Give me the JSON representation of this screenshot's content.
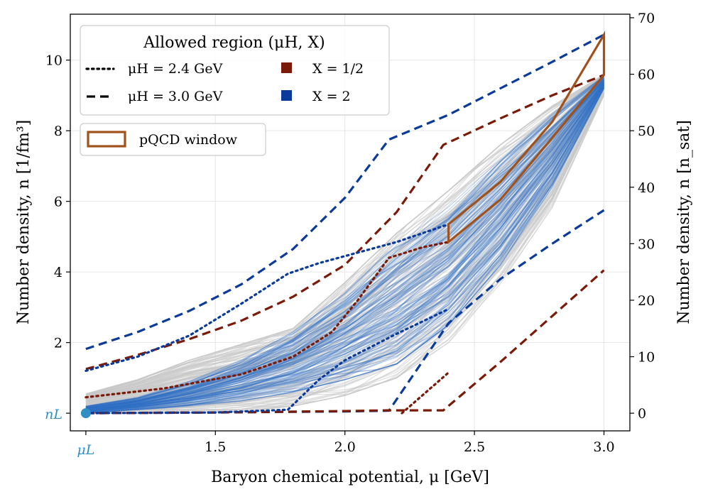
{
  "chart_data": {
    "type": "line",
    "xlabel": "Baryon chemical potential, μ [GeV]",
    "ylabel": "Number density, n [1/fm³]",
    "ylabel_right": "Number density, n [n_sat]",
    "xlim": [
      0.94,
      3.1
    ],
    "ylim": [
      -0.5,
      11.3
    ],
    "ylim_right": [
      -3.125,
      70.625
    ],
    "x_ticks": [
      {
        "value": 1.5,
        "label": "1.5"
      },
      {
        "value": 2.0,
        "label": "2.0"
      },
      {
        "value": 2.5,
        "label": "2.5"
      },
      {
        "value": 3.0,
        "label": "3.0"
      }
    ],
    "x_special_tick": {
      "value": 1.0,
      "label": "μL"
    },
    "y_ticks": [
      {
        "value": 2,
        "label": "2"
      },
      {
        "value": 4,
        "label": "4"
      },
      {
        "value": 6,
        "label": "6"
      },
      {
        "value": 8,
        "label": "8"
      },
      {
        "value": 10,
        "label": "10"
      }
    ],
    "y_special_tick": {
      "value": 0,
      "label": "nL"
    },
    "y_right_ticks": [
      {
        "value": 0,
        "label": "0"
      },
      {
        "value": 10,
        "label": "10"
      },
      {
        "value": 20,
        "label": "20"
      },
      {
        "value": 30,
        "label": "30"
      },
      {
        "value": 40,
        "label": "40"
      },
      {
        "value": 50,
        "label": "50"
      },
      {
        "value": 60,
        "label": "60"
      },
      {
        "value": 70,
        "label": "70"
      }
    ],
    "grid": true,
    "legend": {
      "placement": "top-left",
      "title": "Allowed region (μH, X)",
      "entries": [
        {
          "label": "μH = 2.4 GeV",
          "style": "dotted",
          "color": "#000000"
        },
        {
          "label": "μH = 3.0 GeV",
          "style": "dashed",
          "color": "#000000"
        },
        {
          "label": "X = 1/2",
          "style": "square",
          "color": "#7a1a08"
        },
        {
          "label": "X = 2",
          "style": "square",
          "color": "#0b3b9a"
        }
      ],
      "window_entry": {
        "label": "pQCD window",
        "color": "#a0521d"
      }
    },
    "colors": {
      "x_half": "#7a1a08",
      "x_two": "#0b3b9a",
      "window": "#a0521d",
      "ensemble_blue": "#2d6ec6",
      "ensemble_gray": "#c8c8c8",
      "low_point": "#2f8fc4"
    },
    "low_density_point": {
      "x": 1.0,
      "y": 0.0
    },
    "series": [
      {
        "name": "X = 2, μH = 3.0 GeV upper",
        "style": "dashed",
        "color_key": "x_two",
        "x": [
          1.0,
          1.2,
          1.4,
          1.6,
          1.8,
          2.0,
          2.17,
          2.4,
          2.6,
          2.8,
          3.0
        ],
        "y": [
          1.82,
          2.3,
          2.9,
          3.65,
          4.65,
          6.1,
          7.75,
          8.45,
          9.2,
          9.95,
          10.72
        ]
      },
      {
        "name": "X = 2, μH = 3.0 GeV lower",
        "style": "dashed",
        "color_key": "x_two",
        "x": [
          1.0,
          1.5,
          2.0,
          2.17,
          2.4,
          2.6,
          2.8,
          3.0
        ],
        "y": [
          0.0,
          0.02,
          0.05,
          0.07,
          2.55,
          3.8,
          4.8,
          5.75
        ]
      },
      {
        "name": "X = 1/2, μH = 3.0 GeV upper",
        "style": "dashed",
        "color_key": "x_half",
        "x": [
          1.0,
          1.2,
          1.4,
          1.6,
          1.8,
          2.0,
          2.2,
          2.38,
          2.6,
          2.8,
          3.0
        ],
        "y": [
          1.25,
          1.65,
          2.1,
          2.62,
          3.3,
          4.2,
          5.7,
          7.6,
          8.35,
          9.0,
          9.58
        ]
      },
      {
        "name": "X = 1/2, μH = 3.0 GeV lower",
        "style": "dashed",
        "color_key": "x_half",
        "x": [
          1.0,
          1.5,
          2.0,
          2.16,
          2.38,
          2.6,
          2.8,
          3.0
        ],
        "y": [
          0.0,
          0.02,
          0.06,
          0.08,
          0.08,
          1.45,
          2.75,
          4.05
        ]
      },
      {
        "name": "X = 2, μH = 2.4 GeV upper",
        "style": "dotted",
        "color_key": "x_two",
        "x": [
          1.0,
          1.2,
          1.4,
          1.6,
          1.78,
          1.9,
          2.0,
          2.2,
          2.4
        ],
        "y": [
          1.2,
          1.6,
          2.2,
          3.1,
          3.95,
          4.25,
          4.45,
          4.85,
          5.35
        ]
      },
      {
        "name": "X = 2, μH = 2.4 GeV lower",
        "style": "dotted",
        "color_key": "x_two",
        "x": [
          1.0,
          1.5,
          1.78,
          1.9,
          2.0,
          2.2,
          2.4
        ],
        "y": [
          0.0,
          0.02,
          0.1,
          0.95,
          1.5,
          2.25,
          2.95
        ]
      },
      {
        "name": "X = 1/2, μH = 2.4 GeV upper",
        "style": "dotted",
        "color_key": "x_half",
        "x": [
          1.0,
          1.3,
          1.6,
          1.8,
          1.95,
          2.05,
          2.17,
          2.3,
          2.4
        ],
        "y": [
          0.45,
          0.7,
          1.1,
          1.6,
          2.3,
          3.2,
          4.4,
          4.7,
          4.85
        ]
      },
      {
        "name": "X = 1/2, μH = 2.4 GeV lower",
        "style": "dotted",
        "color_key": "x_half",
        "x": [
          2.22,
          2.4
        ],
        "y": [
          0.0,
          1.15
        ]
      }
    ],
    "window": {
      "x": [
        2.4,
        2.4,
        2.6,
        2.8,
        3.0,
        3.0,
        3.0,
        2.8,
        2.6,
        2.4
      ],
      "y": [
        4.85,
        5.35,
        6.55,
        8.25,
        10.72,
        10.72,
        9.58,
        7.8,
        6.05,
        4.85
      ]
    },
    "ensemble": {
      "gray_band_x": [
        1.0,
        1.2,
        1.4,
        1.6,
        1.8,
        2.0,
        2.2,
        2.4,
        2.6,
        2.8,
        3.0
      ],
      "gray_band_upper": [
        0.55,
        0.95,
        1.5,
        1.95,
        2.4,
        3.7,
        5.1,
        6.3,
        7.6,
        8.7,
        9.6
      ],
      "gray_band_lower": [
        0.0,
        0.0,
        0.02,
        0.05,
        0.2,
        0.5,
        1.0,
        2.0,
        3.6,
        5.8,
        9.0
      ],
      "blue_band_x": [
        1.0,
        1.2,
        1.4,
        1.6,
        1.8,
        2.0,
        2.2,
        2.4,
        2.6,
        2.8,
        3.0
      ],
      "blue_band_upper": [
        0.2,
        0.45,
        0.9,
        1.5,
        2.3,
        3.4,
        4.8,
        5.9,
        7.3,
        8.5,
        9.55
      ],
      "blue_band_lower": [
        0.0,
        0.1,
        0.2,
        0.35,
        0.6,
        0.95,
        1.4,
        2.5,
        4.2,
        6.4,
        9.2
      ]
    }
  }
}
